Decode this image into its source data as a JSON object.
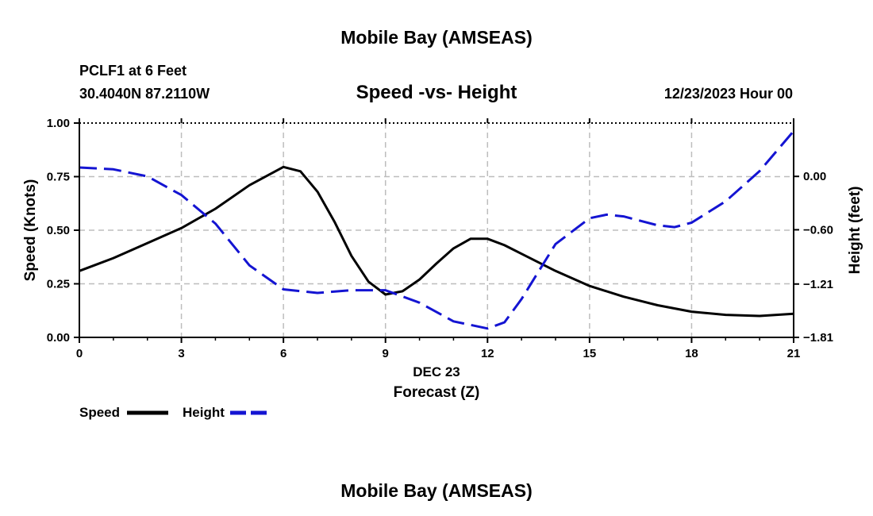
{
  "header": {
    "title": "Mobile Bay (AMSEAS)",
    "station": "PCLF1 at 6 Feet",
    "coords": "30.4040N  87.2110W",
    "chart_title": "Speed -vs- Height",
    "date": "12/23/2023 Hour 00"
  },
  "footer": {
    "title": "Mobile Bay (AMSEAS)"
  },
  "colors": {
    "speed": "#000000",
    "height": "#1414d2",
    "grid": "#bdbdbd"
  },
  "chart_data": {
    "type": "line",
    "title": "Speed -vs- Height",
    "xlabel": "Forecast (Z)",
    "xsublabel": "DEC 23",
    "ylabel": "Speed (Knots)",
    "y2label": "Height (feet)",
    "xlim": [
      0,
      21
    ],
    "ylim": [
      0,
      1
    ],
    "y2lim": [
      -1.81,
      0.6
    ],
    "x_ticks": [
      0,
      3,
      6,
      9,
      12,
      15,
      18,
      21
    ],
    "x_tick_labels": [
      "0",
      "3",
      "6",
      "9",
      "12",
      "15",
      "18",
      "21"
    ],
    "y_ticks": [
      0,
      0.25,
      0.5,
      0.75,
      1.0
    ],
    "y_tick_labels": [
      "0.00",
      "0.25",
      "0.50",
      "0.75",
      "1.00"
    ],
    "y2_ticks": [
      -1.81,
      -1.21,
      -0.6,
      0.0
    ],
    "y2_tick_labels": [
      "−1.81",
      "−1.21",
      "−0.60",
      "0.00"
    ],
    "grid": true,
    "legend_position": "bottom-left",
    "series": [
      {
        "name": "Speed",
        "axis": "left",
        "style": "solid",
        "x": [
          0,
          1,
          2,
          3,
          4,
          5,
          6,
          6.5,
          7,
          7.5,
          8,
          8.5,
          9,
          9.5,
          10,
          10.5,
          11,
          11.5,
          12,
          12.5,
          13,
          14,
          15,
          16,
          17,
          18,
          19,
          20,
          21
        ],
        "values": [
          0.31,
          0.37,
          0.44,
          0.51,
          0.6,
          0.71,
          0.795,
          0.775,
          0.68,
          0.54,
          0.38,
          0.26,
          0.2,
          0.215,
          0.27,
          0.345,
          0.415,
          0.46,
          0.46,
          0.43,
          0.39,
          0.31,
          0.24,
          0.19,
          0.15,
          0.12,
          0.105,
          0.1,
          0.11
        ]
      },
      {
        "name": "Height",
        "axis": "right",
        "style": "dashed",
        "x": [
          0,
          1,
          2,
          3,
          4,
          5,
          6,
          7,
          8,
          9,
          10,
          11,
          12,
          12.5,
          13,
          14,
          15,
          15.5,
          16,
          17,
          17.5,
          18,
          19,
          20,
          21
        ],
        "values": [
          0.1,
          0.08,
          0.0,
          -0.21,
          -0.53,
          -1.0,
          -1.27,
          -1.31,
          -1.28,
          -1.28,
          -1.42,
          -1.63,
          -1.71,
          -1.64,
          -1.38,
          -0.76,
          -0.47,
          -0.43,
          -0.45,
          -0.55,
          -0.57,
          -0.52,
          -0.28,
          0.06,
          0.51
        ]
      }
    ]
  }
}
